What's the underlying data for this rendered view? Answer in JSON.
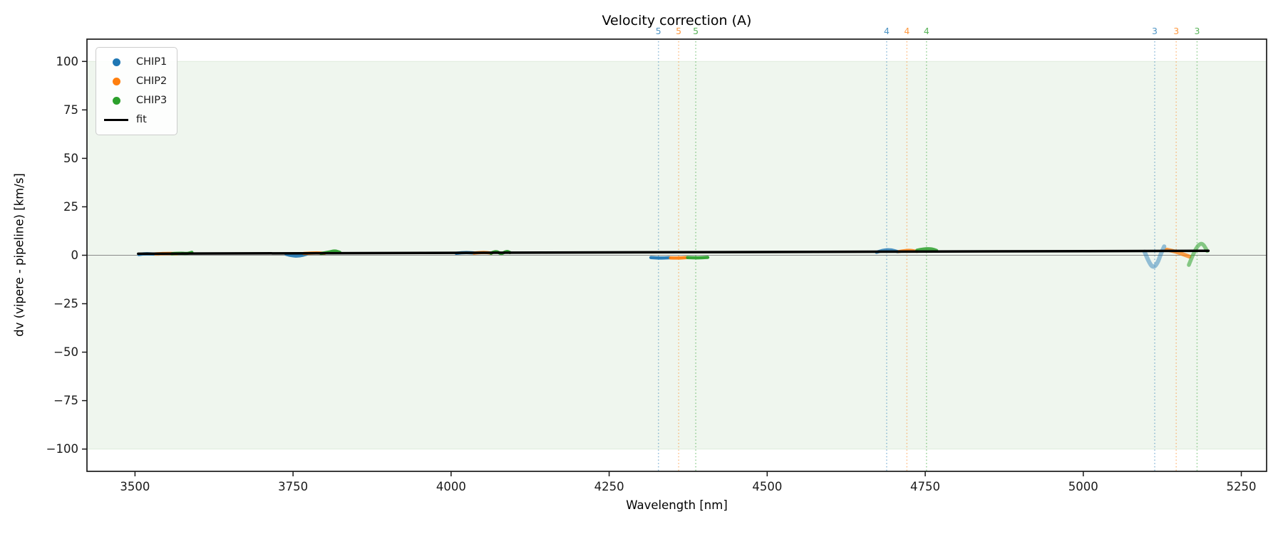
{
  "figure": {
    "background": "#ffffff"
  },
  "chart_data": {
    "type": "scatter",
    "title": "Velocity correction (A)",
    "xlabel": "Wavelength [nm]",
    "ylabel": "dv (vipere - pipeline) [km/s]",
    "xlim": [
      3424,
      5290
    ],
    "ylim": [
      -111.5,
      111.5
    ],
    "xticks": [
      3500,
      3750,
      4000,
      4250,
      4500,
      4750,
      5000,
      5250
    ],
    "yticks": [
      100,
      75,
      50,
      25,
      0,
      -25,
      -50,
      -75,
      -100
    ],
    "grid": false,
    "legend_position": "upper-left",
    "shaded_band": {
      "ymin": -100,
      "ymax": 100,
      "fill": "#eff6ee",
      "edge": "#dfecdd"
    },
    "zero_line": {
      "y": 0,
      "color": "#8a8a8a"
    },
    "fit": {
      "label": "fit",
      "color": "#000000",
      "x": [
        3505,
        5198
      ],
      "y": [
        0.8,
        2.3
      ]
    },
    "series": [
      {
        "name": "CHIP1",
        "color": "#1f77b4",
        "segments": [
          {
            "points": [
              [
                3506,
                0.4
              ],
              [
                3516,
                0.9
              ],
              [
                3528,
                0.6
              ],
              [
                3538,
                0.6
              ]
            ],
            "width": 4.5,
            "opacity": 0.95
          },
          {
            "points": [
              [
                3739,
                0.5
              ],
              [
                3747,
                -0.3
              ],
              [
                3760,
                -0.5
              ],
              [
                3771,
                0.5
              ]
            ],
            "width": 4.5,
            "opacity": 0.9
          },
          {
            "points": [
              [
                4008,
                1.0
              ],
              [
                4020,
                1.5
              ],
              [
                4036,
                1.2
              ]
            ],
            "width": 4.5,
            "opacity": 0.95
          },
          {
            "points": [
              [
                4316,
                -1.2
              ],
              [
                4330,
                -1.5
              ],
              [
                4345,
                -1.3
              ]
            ],
            "width": 4.5,
            "opacity": 0.95
          },
          {
            "points": [
              [
                4673,
                1.5
              ],
              [
                4683,
                2.7
              ],
              [
                4696,
                2.9
              ],
              [
                4706,
                1.9
              ]
            ],
            "width": 4.5,
            "opacity": 0.8
          },
          {
            "points": [
              [
                5097,
                1.8
              ],
              [
                5103,
                -3.0
              ],
              [
                5110,
                -6.5
              ],
              [
                5117,
                -4.5
              ],
              [
                5123,
                1.0
              ],
              [
                5128,
                4.5
              ]
            ],
            "width": 6,
            "opacity": 0.45
          }
        ]
      },
      {
        "name": "CHIP2",
        "color": "#ff7f0e",
        "segments": [
          {
            "points": [
              [
                3532,
                0.7
              ],
              [
                3549,
                1.0
              ],
              [
                3566,
                0.8
              ]
            ],
            "width": 4.5,
            "opacity": 0.95
          },
          {
            "points": [
              [
                3767,
                0.9
              ],
              [
                3784,
                1.3
              ],
              [
                3800,
                1.0
              ]
            ],
            "width": 4.5,
            "opacity": 0.95
          },
          {
            "points": [
              [
                4036,
                1.1
              ],
              [
                4050,
                1.6
              ],
              [
                4064,
                1.1
              ]
            ],
            "width": 4.5,
            "opacity": 0.95
          },
          {
            "points": [
              [
                4347,
                -1.4
              ],
              [
                4360,
                -1.5
              ],
              [
                4373,
                -1.2
              ]
            ],
            "width": 4.5,
            "opacity": 0.95
          },
          {
            "points": [
              [
                4708,
                1.9
              ],
              [
                4722,
                2.8
              ],
              [
                4737,
                2.0
              ]
            ],
            "width": 4.5,
            "opacity": 0.85
          },
          {
            "points": [
              [
                5132,
                2.9
              ],
              [
                5146,
                1.9
              ],
              [
                5157,
                0.6
              ],
              [
                5168,
                -0.7
              ]
            ],
            "width": 5.5,
            "opacity": 0.75
          }
        ]
      },
      {
        "name": "CHIP3",
        "color": "#2ca02c",
        "segments": [
          {
            "points": [
              [
                3558,
                0.8
              ],
              [
                3572,
                1.1
              ],
              [
                3582,
                0.8
              ],
              [
                3590,
                1.5
              ]
            ],
            "width": 4.5,
            "opacity": 0.95
          },
          {
            "points": [
              [
                3794,
                0.9
              ],
              [
                3806,
                1.5
              ],
              [
                3816,
                2.4
              ],
              [
                3824,
                1.5
              ]
            ],
            "width": 4.5,
            "opacity": 0.95
          },
          {
            "points": [
              [
                4063,
                1.0
              ],
              [
                4071,
                2.4
              ],
              [
                4079,
                0.5
              ],
              [
                4088,
                2.2
              ],
              [
                4093,
                1.4
              ]
            ],
            "width": 4.5,
            "opacity": 0.95
          },
          {
            "points": [
              [
                4374,
                -1.2
              ],
              [
                4390,
                -1.4
              ],
              [
                4406,
                -1.1
              ]
            ],
            "width": 4.5,
            "opacity": 0.95
          },
          {
            "points": [
              [
                4737,
                2.6
              ],
              [
                4749,
                3.4
              ],
              [
                4761,
                3.3
              ],
              [
                4768,
                2.5
              ]
            ],
            "width": 4.5,
            "opacity": 0.85
          },
          {
            "points": [
              [
                5167,
                -5.0
              ],
              [
                5174,
                0.8
              ],
              [
                5182,
                5.5
              ],
              [
                5189,
                6.2
              ],
              [
                5196,
                2.2
              ]
            ],
            "width": 5.5,
            "opacity": 0.55
          }
        ]
      }
    ],
    "order_markers": [
      {
        "label": "5",
        "chip": "CHIP1",
        "x": 4328
      },
      {
        "label": "5",
        "chip": "CHIP2",
        "x": 4360
      },
      {
        "label": "5",
        "chip": "CHIP3",
        "x": 4387
      },
      {
        "label": "4",
        "chip": "CHIP1",
        "x": 4689
      },
      {
        "label": "4",
        "chip": "CHIP2",
        "x": 4721
      },
      {
        "label": "4",
        "chip": "CHIP3",
        "x": 4752
      },
      {
        "label": "3",
        "chip": "CHIP1",
        "x": 5113
      },
      {
        "label": "3",
        "chip": "CHIP2",
        "x": 5147
      },
      {
        "label": "3",
        "chip": "CHIP3",
        "x": 5180
      }
    ]
  },
  "legend": {
    "items": [
      {
        "label": "CHIP1",
        "marker": "dot",
        "color": "#1f77b4"
      },
      {
        "label": "CHIP2",
        "marker": "dot",
        "color": "#ff7f0e"
      },
      {
        "label": "CHIP3",
        "marker": "dot",
        "color": "#2ca02c"
      },
      {
        "label": "fit",
        "marker": "line",
        "color": "#000000"
      }
    ]
  }
}
